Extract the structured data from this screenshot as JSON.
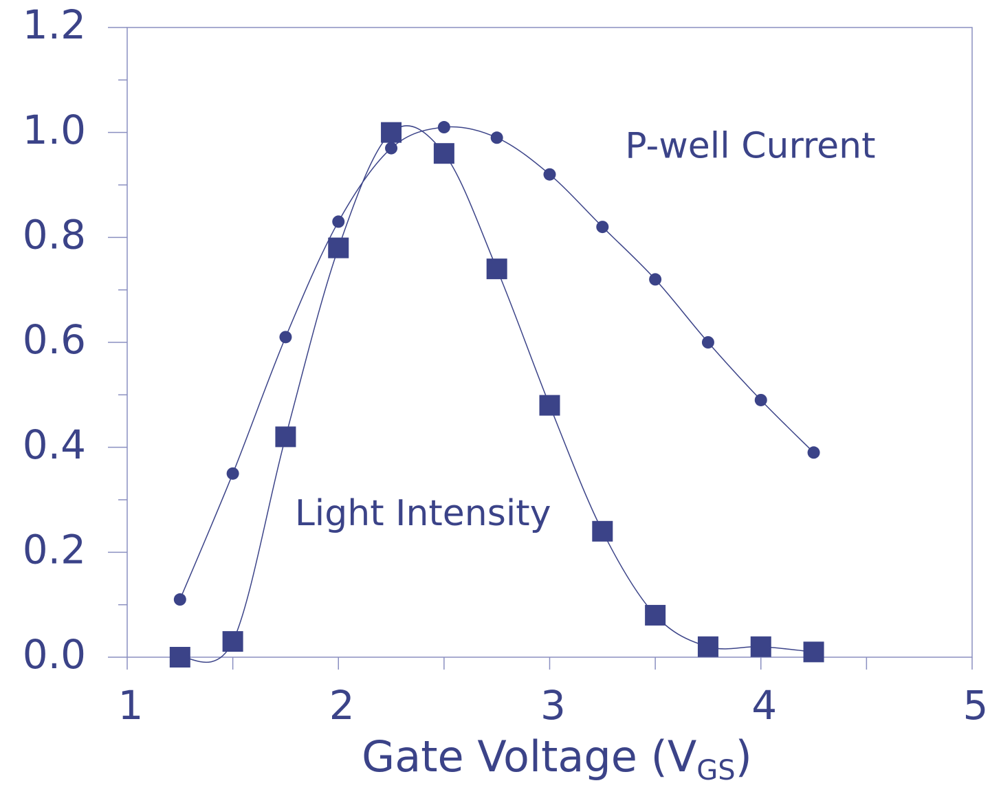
{
  "chart_data": {
    "type": "line",
    "xlabel": {
      "text": "Gate Voltage (V",
      "sub": "GS",
      "end": ")"
    },
    "annotations": [
      {
        "text": "P-well Current",
        "x": 3.95,
        "y": 0.97
      },
      {
        "text": "Light Intensity",
        "x": 2.4,
        "y": 0.27
      }
    ],
    "x": [
      1.25,
      1.5,
      1.75,
      2.0,
      2.25,
      2.5,
      2.75,
      3.0,
      3.25,
      3.5,
      3.75,
      4.0,
      4.25
    ],
    "series": [
      {
        "name": "P-well Current",
        "marker": "circle",
        "color": "#3b4388",
        "values": [
          0.11,
          0.35,
          0.61,
          0.83,
          0.97,
          1.01,
          0.99,
          0.92,
          0.82,
          0.72,
          0.6,
          0.49,
          0.39
        ]
      },
      {
        "name": "Light Intensity",
        "marker": "square",
        "color": "#3b4388",
        "values": [
          0.0,
          0.03,
          0.42,
          0.78,
          1.0,
          0.96,
          0.74,
          0.48,
          0.24,
          0.08,
          0.02,
          0.02,
          0.01
        ]
      }
    ],
    "xlim": [
      1,
      5
    ],
    "ylim": [
      0,
      1.2
    ],
    "xticks": [
      1,
      2,
      3,
      4,
      5
    ],
    "xticks_minor": [
      1.5,
      2.5,
      3.5,
      4.5
    ],
    "yticks": [
      {
        "value": 0,
        "label": "0.0"
      },
      0.2,
      0.4,
      0.6,
      0.8,
      {
        "value": 1,
        "label": "1.0"
      },
      1.2
    ],
    "yticks_minor": [
      0.1,
      0.3,
      0.5,
      0.7,
      0.9,
      1.1
    ]
  }
}
